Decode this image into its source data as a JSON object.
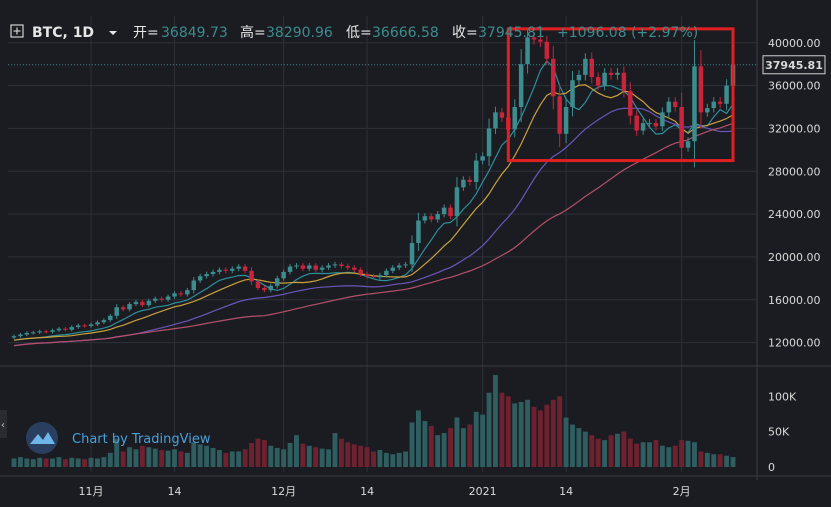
{
  "header": {
    "symbol": "BTC, 1D",
    "open_label": "开=",
    "open_value": "36849.73",
    "high_label": "高=",
    "high_value": "38290.96",
    "low_label": "低=",
    "low_value": "36666.58",
    "close_label": "收=",
    "close_value": "37945.81",
    "change": "+1096.08 (+2.97%)",
    "chevron_icon": "chevron-down-icon",
    "expand_icon": "plus-square-icon"
  },
  "watermark": {
    "text": "Chart by TradingView",
    "logo_icon": "tradingview-cloud-icon"
  },
  "last_price_label": "37945.81",
  "colors": {
    "up": "#3d8c8e",
    "down": "#c8243b",
    "ma_fast": "#2d8f9c",
    "ma_orange": "#c9a23c",
    "ma_purple": "#6a56b8",
    "ma_slow": "#b4506a",
    "highlight_box": "#e02020",
    "background": "#1b1c22",
    "grid": "#2e3038",
    "vol_up": "#2f5e61",
    "vol_down": "#6e2230"
  },
  "chart_data": {
    "type": "candlestick",
    "price_axis": {
      "ticks": [
        12000,
        16000,
        20000,
        24000,
        28000,
        32000,
        36000,
        40000
      ],
      "tick_labels": [
        "12000.00",
        "16000.00",
        "20000.00",
        "24000.00",
        "28000.00",
        "32000.00",
        "36000.00",
        "40000.00"
      ],
      "range": [
        10000,
        42500
      ]
    },
    "volume_axis": {
      "ticks": [
        0,
        50000,
        100000
      ],
      "tick_labels": [
        "0",
        "50K",
        "100K"
      ],
      "range": [
        0,
        140000
      ]
    },
    "x_tick_labels": [
      {
        "label": "11月",
        "index": 12
      },
      {
        "label": "14",
        "index": 25
      },
      {
        "label": "12月",
        "index": 42
      },
      {
        "label": "14",
        "index": 55
      },
      {
        "label": "2021",
        "index": 73
      },
      {
        "label": "14",
        "index": 86
      },
      {
        "label": "2月",
        "index": 104
      }
    ],
    "highlight_region": {
      "from_index": 78,
      "to_index": 111,
      "price_low": 29000,
      "price_high": 41300
    },
    "closes": [
      12600,
      12750,
      12900,
      12950,
      13050,
      13000,
      13150,
      13300,
      13200,
      13450,
      13600,
      13550,
      13700,
      13900,
      14100,
      14500,
      15300,
      15100,
      15600,
      15800,
      15500,
      15900,
      16100,
      16000,
      16300,
      16600,
      16500,
      16900,
      17800,
      18200,
      18400,
      18600,
      18800,
      18700,
      18900,
      19100,
      18700,
      17700,
      17100,
      16900,
      17300,
      18000,
      18600,
      19100,
      19200,
      18900,
      19200,
      18800,
      19000,
      19200,
      19300,
      19150,
      19000,
      18800,
      18400,
      18200,
      18100,
      18300,
      18700,
      19000,
      19200,
      19300,
      21300,
      23400,
      23800,
      23500,
      24000,
      24600,
      23800,
      26500,
      27200,
      27000,
      29000,
      29400,
      32000,
      33500,
      33000,
      31900,
      34000,
      38000,
      40500,
      40300,
      40100,
      38500,
      35000,
      31500,
      34000,
      36500,
      37000,
      38500,
      36800,
      36000,
      37200,
      37000,
      37200,
      35500,
      33200,
      31800,
      32500,
      32500,
      32200,
      33500,
      34500,
      34000,
      30200,
      30800,
      37800,
      33500,
      33900,
      34500,
      34300,
      36000,
      37945.81
    ],
    "volume": [
      12000,
      14000,
      12000,
      11000,
      13000,
      12000,
      12000,
      14000,
      11000,
      13000,
      12000,
      11000,
      13000,
      12000,
      14000,
      20000,
      40000,
      22000,
      28000,
      25000,
      30000,
      28000,
      26000,
      24000,
      23000,
      25000,
      22000,
      20000,
      35000,
      32000,
      30000,
      27000,
      24000,
      20000,
      22000,
      22000,
      25000,
      34000,
      40000,
      38000,
      30000,
      27000,
      25000,
      34000,
      45000,
      33000,
      30000,
      28000,
      26000,
      25000,
      48000,
      40000,
      35000,
      32000,
      30000,
      28000,
      22000,
      24000,
      20000,
      18000,
      20000,
      22000,
      63000,
      80000,
      65000,
      58000,
      45000,
      48000,
      55000,
      70000,
      55000,
      60000,
      78000,
      74000,
      105000,
      130000,
      105000,
      100000,
      90000,
      92000,
      95000,
      85000,
      80000,
      88000,
      95000,
      100000,
      70000,
      60000,
      55000,
      50000,
      45000,
      40000,
      38000,
      45000,
      47000,
      50000,
      40000,
      33000,
      35000,
      35000,
      38000,
      30000,
      28000,
      30000,
      38000,
      37000,
      35000,
      22000,
      20000,
      18000,
      18000,
      16000,
      14000
    ]
  }
}
